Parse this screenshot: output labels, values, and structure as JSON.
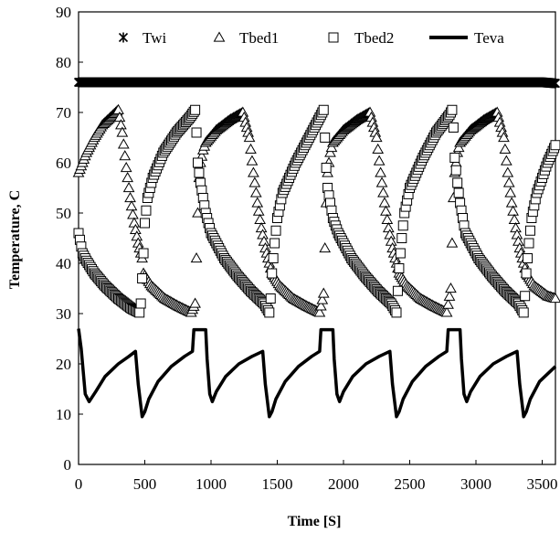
{
  "chart_data": {
    "type": "scatter",
    "title": "",
    "xlabel": "Time [S]",
    "ylabel": "Temperature, C",
    "xlim": [
      0,
      3600
    ],
    "ylim": [
      0,
      90
    ],
    "x_ticks": [
      0,
      500,
      1000,
      1500,
      2000,
      2500,
      3000,
      3500
    ],
    "y_ticks": [
      0,
      10,
      20,
      30,
      40,
      50,
      60,
      70,
      80,
      90
    ],
    "legend": {
      "placement": "top",
      "entries": [
        "Twi",
        "Tbed1",
        "Tbed2",
        "Teva"
      ]
    },
    "grid": false,
    "cycle_period_s": 960,
    "series": [
      {
        "name": "Twi",
        "marker": "asterisk",
        "description": "constant hot-water inlet temperature",
        "x": [
          0,
          500,
          1000,
          1500,
          2000,
          2500,
          3000,
          3500,
          3600
        ],
        "y": [
          76,
          76,
          76,
          76,
          76,
          76,
          76,
          76,
          75.8
        ]
      },
      {
        "name": "Tbed1",
        "marker": "triangle",
        "x": [
          0,
          60,
          120,
          180,
          240,
          300,
          330,
          360,
          390,
          420,
          450,
          480,
          490,
          550,
          650,
          750,
          850,
          880,
          890,
          900,
          910,
          920,
          940,
          960,
          1040,
          1140,
          1240,
          1290,
          1320,
          1350,
          1380,
          1410,
          1440,
          1460,
          1520,
          1620,
          1720,
          1820,
          1850,
          1860,
          1870,
          1880,
          1900,
          1920,
          2000,
          2100,
          2200,
          2250,
          2280,
          2310,
          2340,
          2370,
          2400,
          2420,
          2480,
          2580,
          2680,
          2780,
          2810,
          2820,
          2830,
          2840,
          2860,
          2880,
          2960,
          3060,
          3160,
          3210,
          3240,
          3270,
          3300,
          3330,
          3360,
          3380,
          3440,
          3540,
          3600
        ],
        "y": [
          58,
          62,
          65,
          67.5,
          69,
          70.5,
          66,
          59,
          53,
          48,
          44,
          41,
          38,
          35.5,
          33,
          31.5,
          30.2,
          32,
          41,
          50,
          57,
          60,
          62.5,
          64,
          66.5,
          68.5,
          70,
          65,
          58,
          52,
          47,
          43,
          40,
          38,
          35.5,
          33,
          31.5,
          30.2,
          34,
          43,
          52,
          58,
          62,
          64,
          66.5,
          68.5,
          70,
          65,
          58,
          52,
          47,
          43,
          40,
          38,
          35.5,
          33,
          31.5,
          30.2,
          35,
          44,
          53,
          58,
          62,
          64,
          66.5,
          68.5,
          70,
          65,
          58,
          52,
          47,
          43,
          40,
          38,
          35.5,
          33.5,
          33
        ]
      },
      {
        "name": "Tbed2",
        "marker": "square",
        "x": [
          0,
          30,
          60,
          120,
          200,
          300,
          400,
          460,
          470,
          480,
          490,
          500,
          520,
          560,
          640,
          740,
          840,
          880,
          890,
          900,
          920,
          940,
          960,
          1000,
          1100,
          1200,
          1300,
          1400,
          1440,
          1450,
          1460,
          1480,
          1500,
          1540,
          1640,
          1740,
          1820,
          1850,
          1860,
          1870,
          1880,
          1900,
          1920,
          1960,
          2060,
          2160,
          2260,
          2360,
          2400,
          2410,
          2420,
          2440,
          2460,
          2500,
          2600,
          2700,
          2800,
          2820,
          2830,
          2840,
          2860,
          2880,
          2920,
          3020,
          3120,
          3220,
          3320,
          3360,
          3370,
          3380,
          3400,
          3420,
          3460,
          3540,
          3600
        ],
        "y": [
          46,
          42,
          40.5,
          38,
          35.5,
          33,
          31,
          30.2,
          32,
          37,
          42,
          48,
          53,
          57,
          62,
          66,
          69,
          70.5,
          66,
          60,
          56,
          53,
          50,
          46,
          41,
          37.5,
          34.5,
          32,
          30.2,
          33,
          38,
          44,
          49,
          54,
          60,
          65,
          69,
          70.5,
          65,
          59,
          55,
          52,
          49,
          46,
          41,
          37.5,
          34.5,
          32,
          30.2,
          34.5,
          39,
          45,
          50,
          55,
          61,
          66,
          69.5,
          70.5,
          67,
          61,
          56,
          52,
          46,
          41,
          37.5,
          34.5,
          32,
          30.2,
          33.5,
          38,
          44,
          49,
          54,
          60,
          63.5
        ]
      },
      {
        "name": "Teva",
        "marker": "none",
        "description": "evaporator temperature, sawtooth cycle",
        "x": [
          0,
          20,
          50,
          80,
          130,
          200,
          300,
          380,
          430,
          450,
          480,
          500,
          530,
          600,
          700,
          800,
          860,
          870,
          900,
          930,
          960,
          970,
          990,
          1010,
          1040,
          1110,
          1210,
          1310,
          1390,
          1410,
          1440,
          1460,
          1490,
          1560,
          1660,
          1760,
          1820,
          1830,
          1860,
          1890,
          1920,
          1930,
          1950,
          1970,
          2000,
          2070,
          2170,
          2270,
          2350,
          2370,
          2400,
          2420,
          2450,
          2520,
          2620,
          2720,
          2780,
          2790,
          2820,
          2850,
          2880,
          2890,
          2910,
          2930,
          2960,
          3030,
          3130,
          3230,
          3310,
          3330,
          3360,
          3380,
          3410,
          3480,
          3600
        ],
        "y": [
          27,
          23,
          14,
          12.5,
          14.5,
          17.5,
          20,
          21.5,
          22.5,
          16,
          9.5,
          10.5,
          13,
          16.5,
          19.5,
          21.5,
          22.5,
          26.8,
          26.8,
          26.8,
          26.8,
          21,
          14,
          12.5,
          14.5,
          17.5,
          20,
          21.5,
          22.5,
          16,
          9.5,
          10.5,
          13,
          16.5,
          19.5,
          21.5,
          22.5,
          26.8,
          26.8,
          26.8,
          26.8,
          21,
          14,
          12.5,
          14.5,
          17.5,
          20,
          21.5,
          22.5,
          16,
          9.5,
          10.5,
          13,
          16.5,
          19.5,
          21.5,
          22.5,
          26.8,
          26.8,
          26.8,
          26.8,
          21,
          14,
          12.5,
          14.5,
          17.5,
          20,
          21.5,
          22.5,
          16,
          9.5,
          10.5,
          13,
          16.5,
          19.5
        ]
      }
    ]
  }
}
